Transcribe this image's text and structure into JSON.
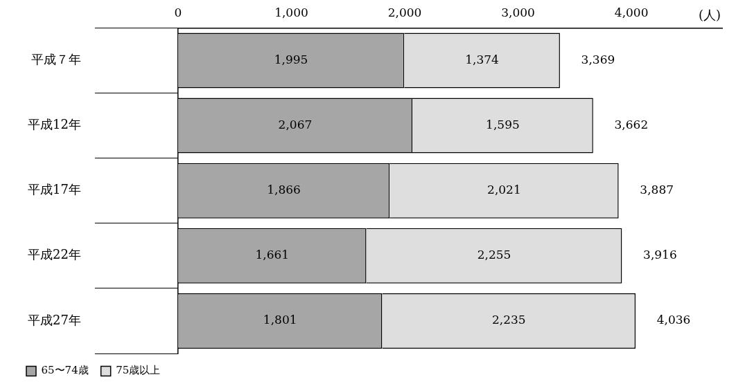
{
  "chart_data": {
    "type": "bar",
    "orientation": "horizontal",
    "stacked": true,
    "xlabel": "(人)",
    "categories": [
      "平成７年",
      "平成12年",
      "平成17年",
      "平成22年",
      "平成27年"
    ],
    "series": [
      {
        "name": "65〜74歳",
        "color": "#a6a6a6",
        "values": [
          1995,
          2067,
          1866,
          1661,
          1801
        ],
        "value_labels": [
          "1,995",
          "2,067",
          "1,866",
          "1,661",
          "1,801"
        ]
      },
      {
        "name": "75歳以上",
        "color": "#dedede",
        "values": [
          1374,
          1595,
          2021,
          2255,
          2235
        ],
        "value_labels": [
          "1,374",
          "1,595",
          "2,021",
          "2,255",
          "2,235"
        ]
      }
    ],
    "totals": [
      "3,369",
      "3,662",
      "3,887",
      "3,916",
      "4,036"
    ],
    "xlim": [
      0,
      4800
    ],
    "xticks": [
      0,
      {
        "value": 1000,
        "label": "1,000"
      },
      {
        "value": 2000,
        "label": "2,000"
      },
      {
        "value": 3000,
        "label": "3,000"
      },
      {
        "value": 4000,
        "label": "4,000"
      }
    ],
    "grid": false,
    "legend": "bottom left"
  }
}
